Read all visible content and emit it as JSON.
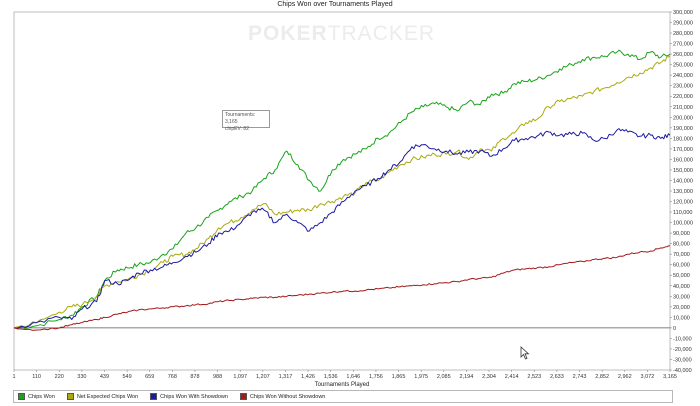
{
  "chart_data": {
    "type": "line",
    "title": "Chips Won over Tournaments Played",
    "xlabel": "Tournaments Played",
    "ylabel": "",
    "xlim": [
      1,
      3165
    ],
    "ylim": [
      -40000,
      300000
    ],
    "x_ticks": [
      "1",
      "110",
      "220",
      "330",
      "439",
      "549",
      "659",
      "768",
      "878",
      "988",
      "1,097",
      "1,207",
      "1,317",
      "1,426",
      "1,536",
      "1,646",
      "1,756",
      "1,865",
      "1,975",
      "2,085",
      "2,194",
      "2,304",
      "2,414",
      "2,523",
      "2,633",
      "2,743",
      "2,852",
      "2,962",
      "3,072",
      "3,165"
    ],
    "y_ticks": [
      "300,000",
      "290,000",
      "280,000",
      "270,000",
      "260,000",
      "250,000",
      "240,000",
      "230,000",
      "220,000",
      "210,000",
      "200,000",
      "190,000",
      "180,000",
      "170,000",
      "160,000",
      "150,000",
      "140,000",
      "130,000",
      "120,000",
      "110,000",
      "100,000",
      "90,000",
      "80,000",
      "70,000",
      "60,000",
      "50,000",
      "40,000",
      "30,000",
      "20,000",
      "10,000",
      "0",
      "-10,000",
      "-20,000",
      "-30,000",
      "-40,000"
    ],
    "y_tick_values": [
      300000,
      290000,
      280000,
      270000,
      260000,
      250000,
      240000,
      230000,
      220000,
      210000,
      200000,
      190000,
      180000,
      170000,
      160000,
      150000,
      140000,
      130000,
      120000,
      110000,
      100000,
      90000,
      80000,
      70000,
      60000,
      50000,
      40000,
      30000,
      20000,
      10000,
      0,
      -10000,
      -20000,
      -30000,
      -40000
    ],
    "grid": false,
    "legend_position": "bottom",
    "series": [
      {
        "name": "Chips Won",
        "color": "#1aa31a",
        "x": [
          1,
          110,
          220,
          280,
          330,
          400,
          439,
          500,
          549,
          600,
          659,
          720,
          768,
          830,
          878,
          940,
          988,
          1040,
          1097,
          1150,
          1207,
          1260,
          1317,
          1370,
          1426,
          1480,
          1536,
          1590,
          1646,
          1700,
          1756,
          1810,
          1865,
          1920,
          1975,
          2030,
          2085,
          2140,
          2194,
          2250,
          2304,
          2360,
          2414,
          2470,
          2523,
          2580,
          2633,
          2690,
          2743,
          2800,
          2852,
          2910,
          2962,
          3020,
          3072,
          3120,
          3165
        ],
        "values": [
          0,
          2000,
          8000,
          12000,
          20000,
          30000,
          45000,
          55000,
          57000,
          60000,
          62000,
          70000,
          75000,
          90000,
          95000,
          105000,
          112000,
          120000,
          125000,
          130000,
          142000,
          150000,
          168000,
          155000,
          140000,
          130000,
          150000,
          160000,
          165000,
          170000,
          180000,
          185000,
          195000,
          205000,
          210000,
          213000,
          210000,
          206000,
          215000,
          212000,
          222000,
          223000,
          232000,
          234000,
          236000,
          240000,
          246000,
          250000,
          255000,
          257000,
          258000,
          262000,
          260000,
          255000,
          262000,
          257000,
          260000
        ]
      },
      {
        "name": "Net Expected Chips Won",
        "color": "#aaaa10",
        "x": [
          1,
          110,
          220,
          280,
          330,
          400,
          439,
          500,
          549,
          600,
          659,
          720,
          768,
          830,
          878,
          940,
          988,
          1040,
          1097,
          1150,
          1207,
          1260,
          1317,
          1370,
          1426,
          1480,
          1536,
          1590,
          1646,
          1700,
          1756,
          1810,
          1865,
          1920,
          1975,
          2030,
          2085,
          2140,
          2194,
          2250,
          2304,
          2360,
          2414,
          2470,
          2523,
          2580,
          2633,
          2690,
          2743,
          2800,
          2852,
          2910,
          2962,
          3020,
          3072,
          3120,
          3165
        ],
        "values": [
          0,
          5000,
          15000,
          20000,
          22000,
          30000,
          40000,
          44000,
          46000,
          50000,
          55000,
          62000,
          68000,
          70000,
          75000,
          85000,
          95000,
          100000,
          105000,
          112000,
          118000,
          108000,
          110000,
          112000,
          112000,
          118000,
          120000,
          125000,
          128000,
          138000,
          140000,
          148000,
          155000,
          160000,
          162000,
          165000,
          165000,
          168000,
          160000,
          170000,
          168000,
          180000,
          185000,
          195000,
          198000,
          210000,
          215000,
          218000,
          220000,
          225000,
          228000,
          233000,
          238000,
          242000,
          247000,
          252000,
          258000
        ]
      },
      {
        "name": "Chips Won With Showdown",
        "color": "#1a1aa3",
        "x": [
          1,
          110,
          220,
          280,
          330,
          400,
          439,
          500,
          549,
          600,
          659,
          720,
          768,
          830,
          878,
          940,
          988,
          1040,
          1097,
          1150,
          1207,
          1260,
          1317,
          1370,
          1426,
          1480,
          1536,
          1590,
          1646,
          1700,
          1756,
          1810,
          1865,
          1920,
          1975,
          2030,
          2085,
          2140,
          2194,
          2250,
          2304,
          2360,
          2414,
          2470,
          2523,
          2580,
          2633,
          2690,
          2743,
          2800,
          2852,
          2910,
          2962,
          3020,
          3072,
          3120,
          3165
        ],
        "values": [
          0,
          5000,
          10000,
          8000,
          18000,
          25000,
          45000,
          42000,
          45000,
          52000,
          55000,
          58000,
          62000,
          68000,
          72000,
          80000,
          90000,
          92000,
          100000,
          110000,
          112000,
          100000,
          108000,
          100000,
          92000,
          100000,
          110000,
          120000,
          130000,
          135000,
          142000,
          150000,
          158000,
          172000,
          174000,
          170000,
          168000,
          165000,
          167000,
          168000,
          163000,
          170000,
          178000,
          180000,
          182000,
          186000,
          183000,
          184000,
          185000,
          178000,
          180000,
          188000,
          186000,
          182000,
          183000,
          180000,
          183000
        ]
      },
      {
        "name": "Chips Won Without Showdown",
        "color": "#a31a1a",
        "x": [
          1,
          110,
          220,
          280,
          330,
          400,
          439,
          500,
          549,
          600,
          659,
          720,
          768,
          830,
          878,
          940,
          988,
          1040,
          1097,
          1150,
          1207,
          1260,
          1317,
          1370,
          1426,
          1480,
          1536,
          1590,
          1646,
          1700,
          1756,
          1810,
          1865,
          1920,
          1975,
          2030,
          2085,
          2140,
          2194,
          2250,
          2304,
          2360,
          2414,
          2470,
          2523,
          2580,
          2633,
          2690,
          2743,
          2800,
          2852,
          2910,
          2962,
          3020,
          3072,
          3120,
          3165
        ],
        "values": [
          0,
          -2000,
          0,
          3000,
          5000,
          8000,
          10000,
          13000,
          15000,
          17000,
          18000,
          19000,
          20000,
          21000,
          22000,
          23000,
          25000,
          26000,
          27000,
          28000,
          29000,
          29000,
          30000,
          31000,
          32000,
          33000,
          34000,
          35000,
          35000,
          36000,
          37000,
          38000,
          39000,
          40000,
          41000,
          42000,
          43000,
          44000,
          46000,
          47000,
          48000,
          52000,
          55000,
          56000,
          57000,
          58000,
          60000,
          62000,
          63000,
          65000,
          66000,
          67000,
          70000,
          72000,
          73000,
          76000,
          78000
        ]
      }
    ]
  },
  "tooltip": {
    "line1": "Tournaments: 3,165",
    "line2": "chipEV: 82"
  },
  "watermark": {
    "part1": "POKER",
    "part2": "TRACKER"
  }
}
